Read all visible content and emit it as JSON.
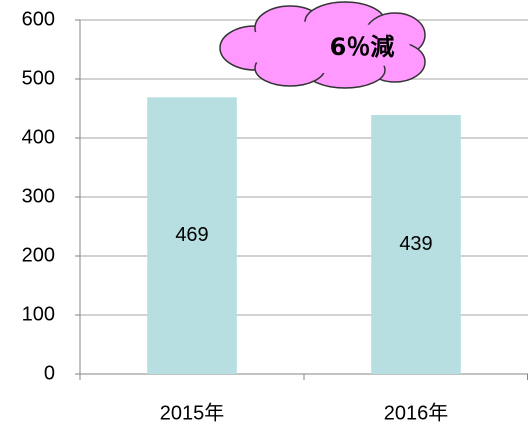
{
  "chart_data": {
    "type": "bar",
    "categories": [
      "2015年",
      "2016年"
    ],
    "values": [
      469,
      439
    ],
    "color": "#b7dee0",
    "ylim": [
      0,
      600
    ],
    "yticks": [
      0,
      100,
      200,
      300,
      400,
      500,
      600
    ],
    "grid": true,
    "annotation": "6％減"
  }
}
